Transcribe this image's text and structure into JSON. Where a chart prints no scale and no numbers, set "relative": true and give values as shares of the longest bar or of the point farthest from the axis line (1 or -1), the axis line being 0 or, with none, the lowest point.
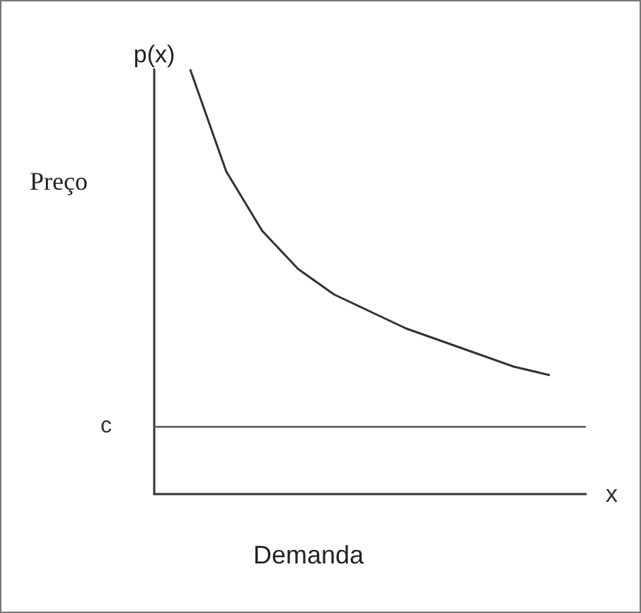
{
  "chart_data": {
    "type": "line",
    "relative": true,
    "xlabel": "Demanda",
    "ylabel": "Preço",
    "annotations": [
      "p(x)",
      "x"
    ],
    "categories": [
      null,
      null,
      null,
      null,
      null,
      null,
      null,
      null,
      null,
      null,
      null,
      null,
      null
    ],
    "series": [
      {
        "color": "#333333",
        "values": [
          null,
          1,
          0.76,
          0.62,
          0.53,
          0.47,
          0.43,
          0.39,
          0.36,
          0.33,
          0.3,
          0.28,
          null
        ]
      }
    ],
    "ref_lines": [
      {
        "axis": "y",
        "value": 0.16,
        "label": "c",
        "color": "#555555"
      }
    ],
    "grid": false,
    "marker": "none",
    "line_style": "solid"
  }
}
